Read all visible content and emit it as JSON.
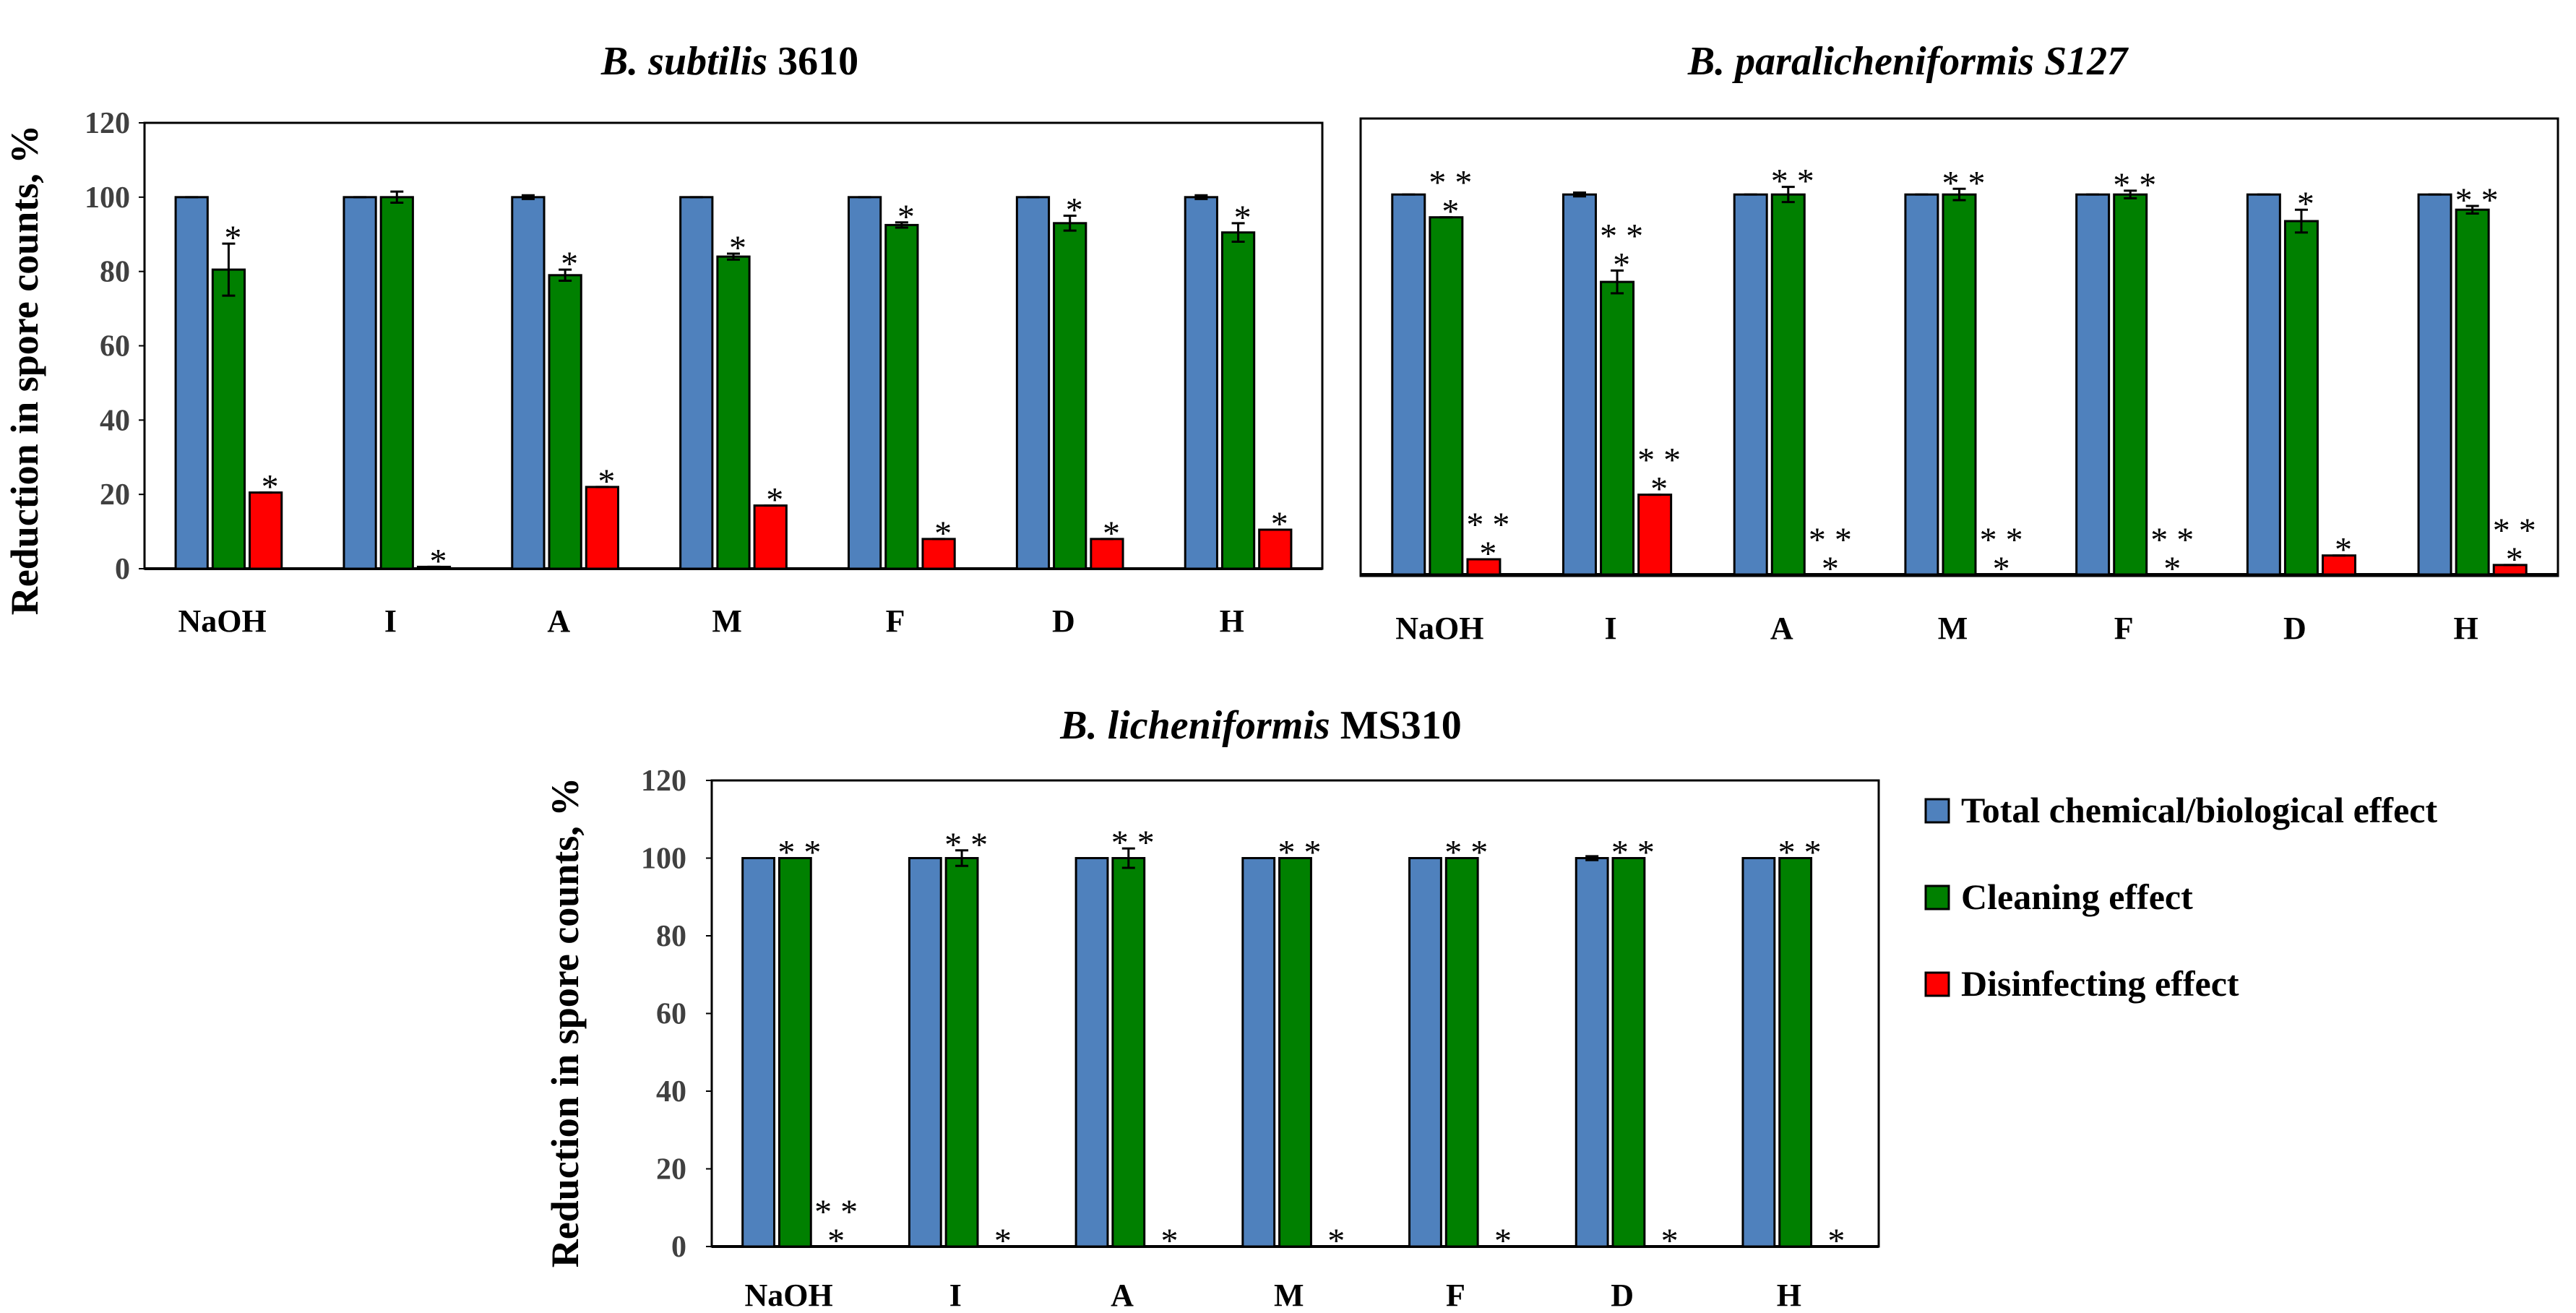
{
  "chart_data": [
    {
      "type": "bar",
      "title_italic": "B. subtilis",
      "title_rest": " 3610",
      "ylabel": "Reduction in spore counts, %",
      "ylim": [
        0,
        120
      ],
      "yticks": [
        0,
        20,
        40,
        60,
        80,
        100,
        120
      ],
      "categories": [
        "NaOH",
        "I",
        "A",
        "M",
        "F",
        "D",
        "H"
      ],
      "series": [
        {
          "name": "Total chemical/biological effect",
          "values": [
            100,
            100,
            100,
            100,
            100,
            100,
            100
          ],
          "errors": [
            0,
            0,
            0.5,
            0,
            0,
            0,
            0.5
          ]
        },
        {
          "name": "Cleaning effect",
          "values": [
            80.5,
            100,
            79,
            84,
            92.5,
            93,
            90.5
          ],
          "errors": [
            7,
            1.5,
            1.5,
            0.8,
            0.7,
            2,
            2.5
          ]
        },
        {
          "name": "Disinfecting effect",
          "values": [
            20.5,
            0.5,
            22,
            17,
            8,
            8,
            10.5
          ],
          "errors": [
            0,
            0,
            0,
            0,
            0,
            0,
            0
          ]
        }
      ],
      "significance": [
        [
          "",
          "*",
          "*"
        ],
        [
          "",
          "",
          "*"
        ],
        [
          "",
          "*",
          "*"
        ],
        [
          "",
          "*",
          "*"
        ],
        [
          "",
          "*",
          "*"
        ],
        [
          "",
          "*",
          "*"
        ],
        [
          "",
          "*",
          "*"
        ]
      ]
    },
    {
      "type": "bar",
      "title_italic": "B. paralicheniformis S127",
      "title_rest": "",
      "ylabel": "",
      "ylim": [
        0,
        120
      ],
      "yticks": [],
      "categories": [
        "NaOH",
        "I",
        "A",
        "M",
        "F",
        "D",
        "H"
      ],
      "series": [
        {
          "name": "Total chemical/biological effect",
          "values": [
            100,
            100,
            100,
            100,
            100,
            100,
            100
          ],
          "errors": [
            0,
            0.5,
            0,
            0,
            0,
            0,
            0
          ]
        },
        {
          "name": "Cleaning effect",
          "values": [
            94,
            77,
            100,
            100,
            100,
            93,
            96
          ],
          "errors": [
            0,
            3,
            2,
            1.5,
            1,
            3,
            1
          ]
        },
        {
          "name": "Disinfecting effect",
          "values": [
            4,
            21,
            0,
            0,
            0,
            5,
            2.5
          ],
          "errors": [
            0,
            0,
            0,
            0,
            0,
            0,
            0
          ]
        }
      ],
      "significance": [
        [
          "",
          "**\n*",
          "**\n*"
        ],
        [
          "",
          "**\n*",
          "**\n*"
        ],
        [
          "",
          "**",
          "**\n*"
        ],
        [
          "",
          "**",
          "**\n*"
        ],
        [
          "",
          "**",
          "**\n*"
        ],
        [
          "",
          "*",
          "*"
        ],
        [
          "",
          "**",
          "**\n*"
        ]
      ]
    },
    {
      "type": "bar",
      "title_italic": "B. licheniformis",
      "title_rest": " MS310",
      "ylabel": "Reduction in spore counts, %",
      "ylim": [
        0,
        120
      ],
      "yticks": [
        0,
        20,
        40,
        60,
        80,
        100,
        120
      ],
      "categories": [
        "NaOH",
        "I",
        "A",
        "M",
        "F",
        "D",
        "H"
      ],
      "series": [
        {
          "name": "Total chemical/biological effect",
          "values": [
            100,
            100,
            100,
            100,
            100,
            100,
            100
          ],
          "errors": [
            0,
            0,
            0,
            0,
            0,
            0.5,
            0
          ]
        },
        {
          "name": "Cleaning effect",
          "values": [
            100,
            100,
            100,
            100,
            100,
            100,
            100
          ],
          "errors": [
            0,
            2,
            2.5,
            0,
            0,
            0,
            0
          ]
        },
        {
          "name": "Disinfecting effect",
          "values": [
            0,
            0,
            0,
            0,
            0,
            0,
            0
          ],
          "errors": [
            0,
            0,
            0,
            0,
            0,
            0,
            0
          ]
        }
      ],
      "significance": [
        [
          "",
          "**",
          "**\n*"
        ],
        [
          "",
          "**",
          "*"
        ],
        [
          "",
          "**",
          "*"
        ],
        [
          "",
          "**",
          "*"
        ],
        [
          "",
          "**",
          "*"
        ],
        [
          "",
          "**",
          "*"
        ],
        [
          "",
          "**",
          "*"
        ]
      ]
    }
  ],
  "legend": {
    "items": [
      {
        "label": "Total chemical/biological effect",
        "color": "#4f81bd"
      },
      {
        "label": "Cleaning effect",
        "color": "#008000"
      },
      {
        "label": "Disinfecting effect",
        "color": "#ff0000"
      }
    ]
  },
  "colors": [
    "#4f81bd",
    "#008000",
    "#ff0000"
  ]
}
